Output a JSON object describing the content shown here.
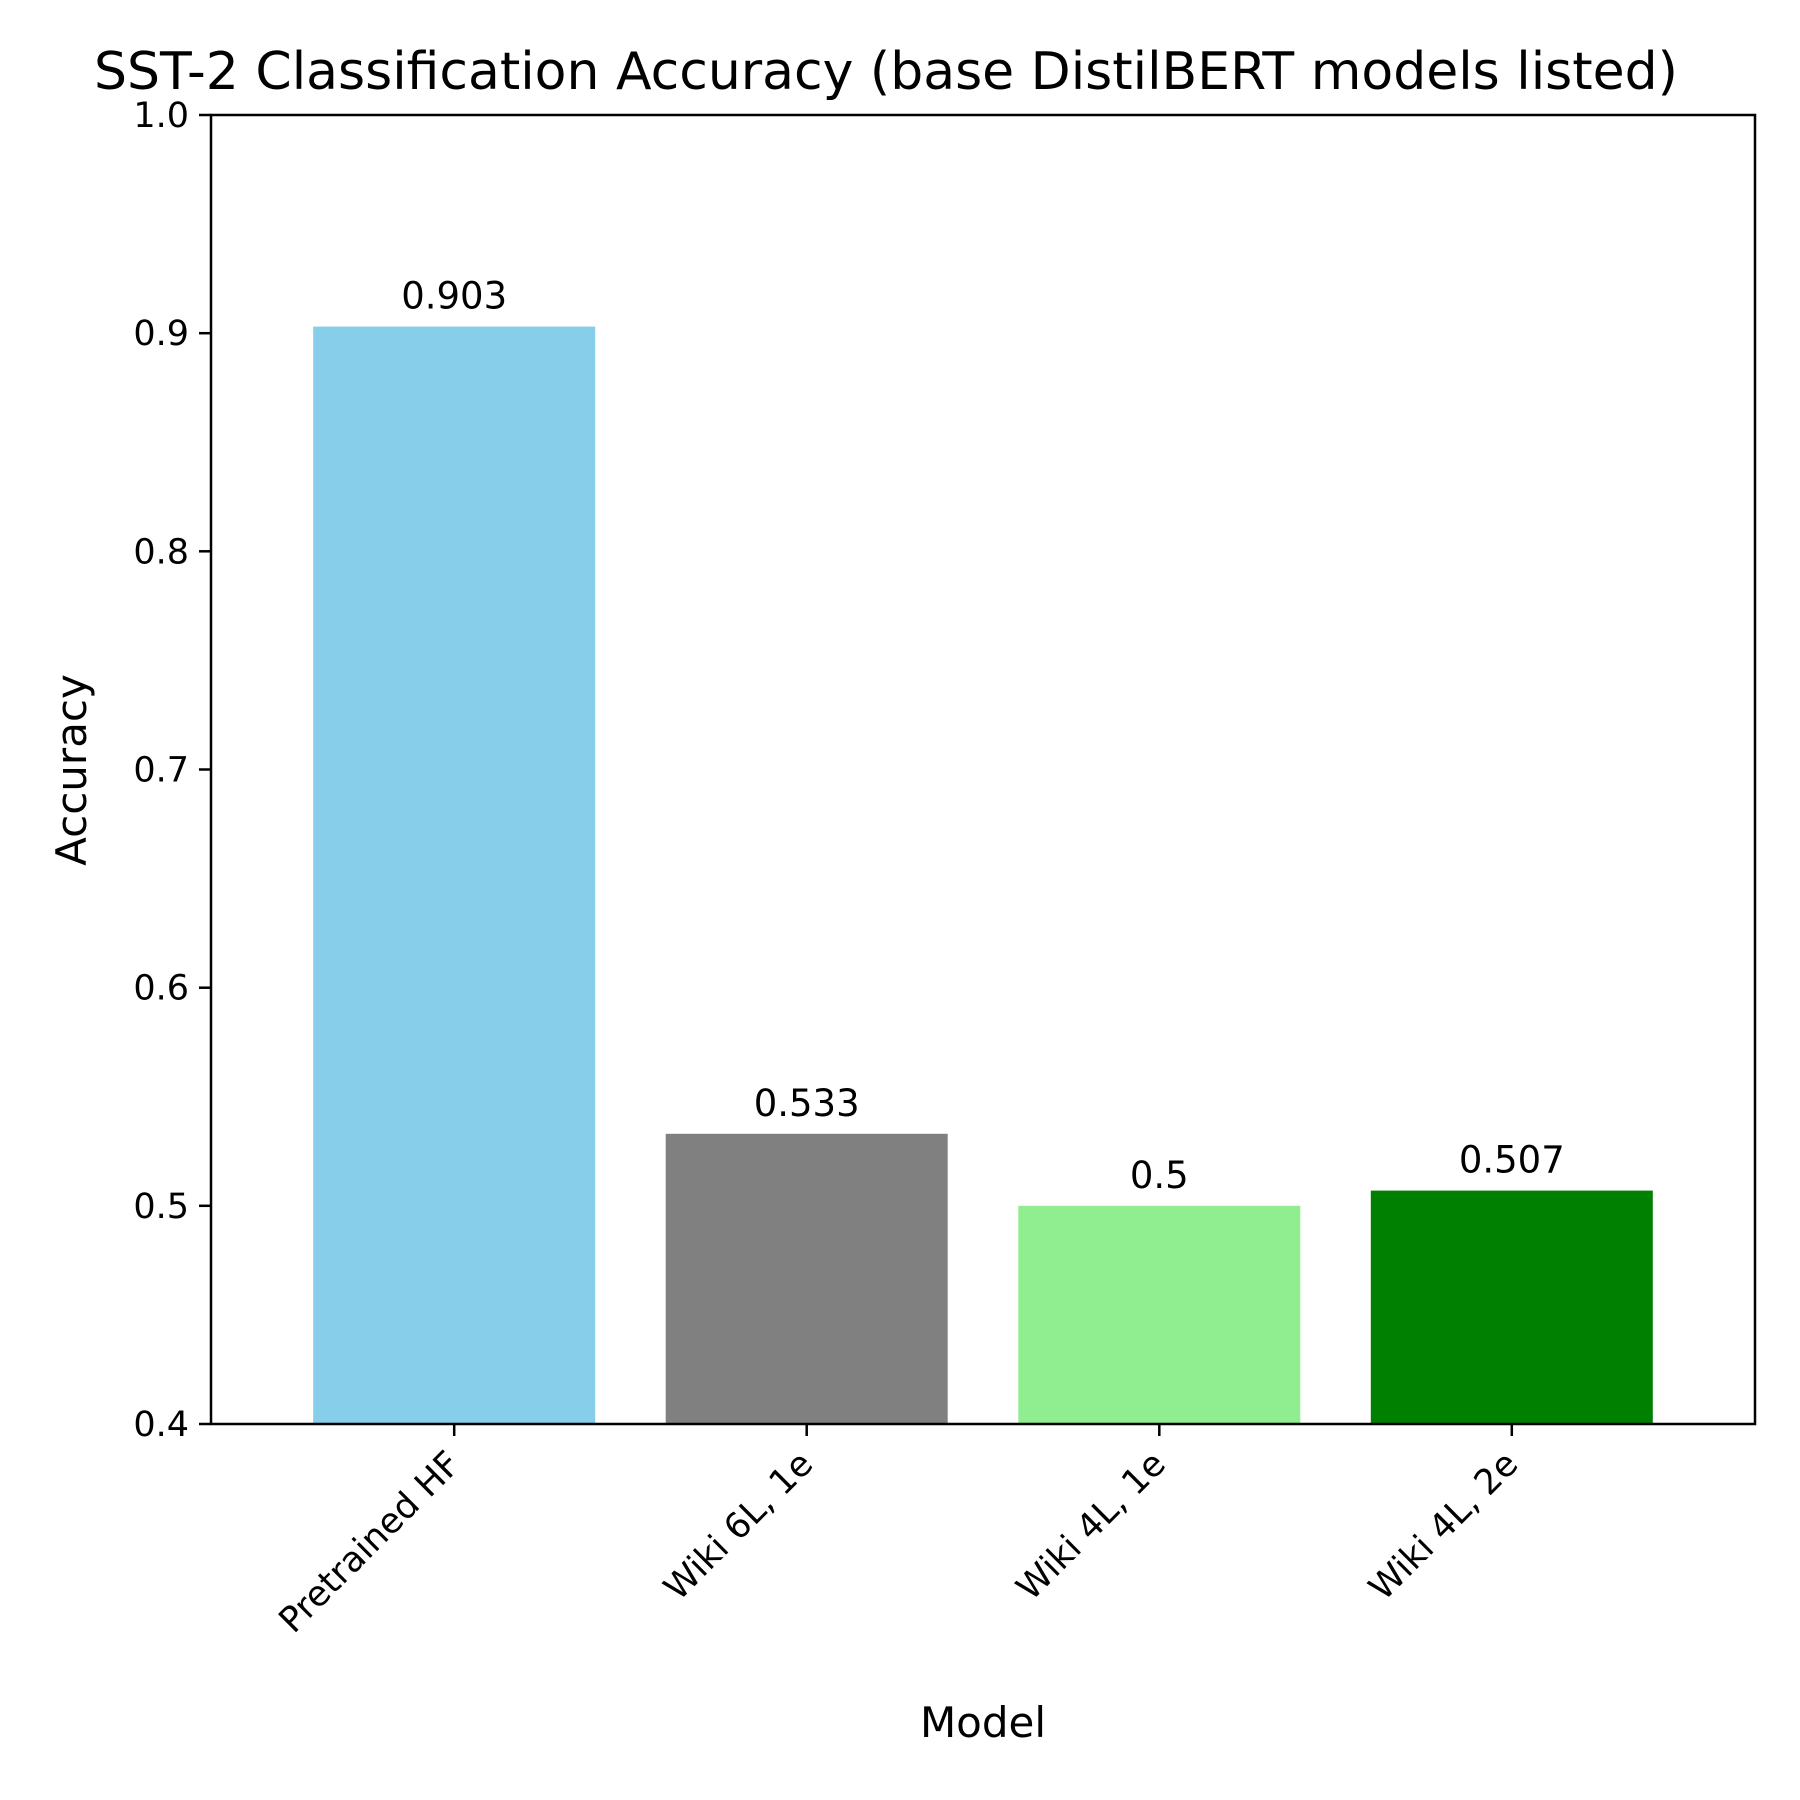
{
  "chart_data": {
    "type": "bar",
    "title": "SST-2 Classification Accuracy (base DistilBERT models listed)",
    "xlabel": "Model",
    "ylabel": "Accuracy",
    "categories": [
      "Pretrained HF",
      "Wiki 6L, 1e",
      "Wiki 4L, 1e",
      "Wiki 4L, 2e"
    ],
    "values": [
      0.903,
      0.533,
      0.5,
      0.507
    ],
    "value_labels": [
      "0.903",
      "0.533",
      "0.5",
      "0.507"
    ],
    "colors": [
      "#87CEEB",
      "#808080",
      "#90EE90",
      "#008000"
    ],
    "ylim": [
      0.4,
      1.0
    ],
    "yticks": [
      0.4,
      0.5,
      0.6,
      0.7,
      0.8,
      0.9,
      1.0
    ],
    "ytick_labels": [
      "0.4",
      "0.5",
      "0.6",
      "0.7",
      "0.8",
      "0.9",
      "1.0"
    ],
    "grid": false,
    "legend": "none"
  }
}
